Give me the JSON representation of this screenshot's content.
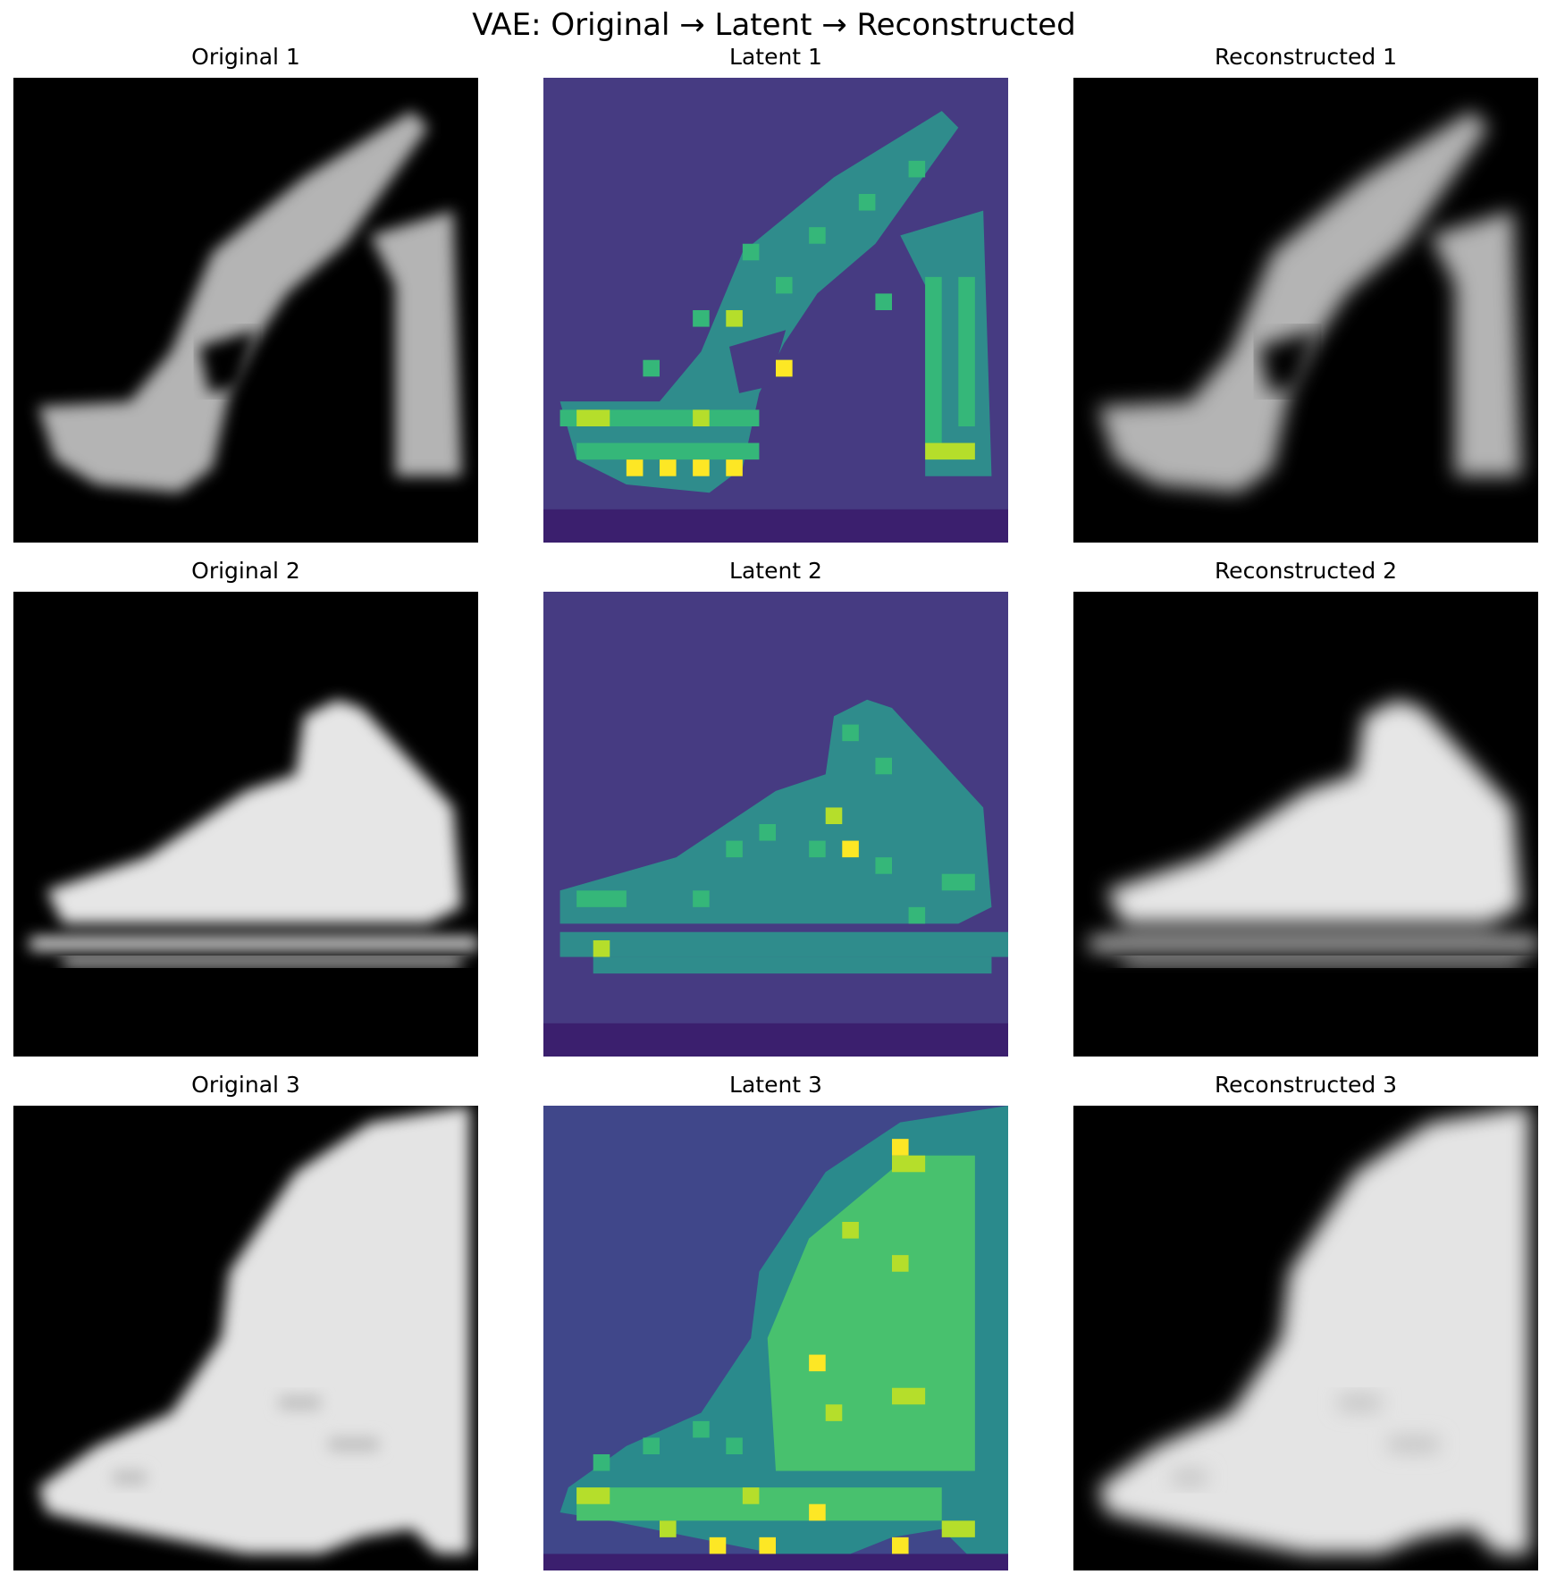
{
  "suptitle": "VAE: Original → Latent → Reconstructed",
  "rows": [
    {
      "original_title": "Original 1",
      "latent_title": "Latent 1",
      "reconstructed_title": "Reconstructed 1",
      "shape": "high-heel sandal"
    },
    {
      "original_title": "Original 2",
      "latent_title": "Latent 2",
      "reconstructed_title": "Reconstructed 2",
      "shape": "high-top sneaker"
    },
    {
      "original_title": "Original 3",
      "latent_title": "Latent 3",
      "reconstructed_title": "Reconstructed 3",
      "shape": "ankle boot"
    }
  ],
  "colors": {
    "image_background": "#000000",
    "latent_colormap": "viridis",
    "latent_background": "#463b82"
  }
}
